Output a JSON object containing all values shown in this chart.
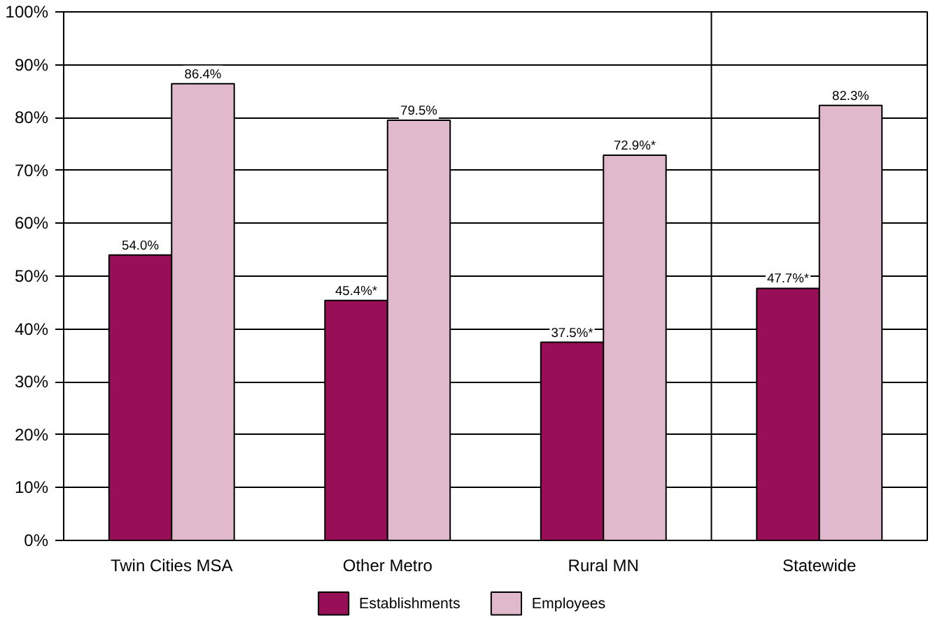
{
  "chart_data": {
    "type": "bar",
    "categories": [
      "Twin Cities MSA",
      "Other Metro",
      "Rural MN",
      "Statewide"
    ],
    "series": [
      {
        "name": "Establishments",
        "color": "#990f57",
        "values": [
          54.0,
          45.4,
          37.5,
          47.7
        ],
        "value_labels": [
          "54.0%",
          "45.4%*",
          "37.5%*",
          "47.7%*"
        ]
      },
      {
        "name": "Employees",
        "color": "#e0b9cd",
        "values": [
          86.4,
          79.5,
          72.9,
          82.3
        ],
        "value_labels": [
          "86.4%",
          "79.5%",
          "72.9%*",
          "82.3%"
        ]
      }
    ],
    "ylim": [
      0,
      100
    ],
    "yticks": [
      {
        "value": 0,
        "label": "0%"
      },
      {
        "value": 10,
        "label": "10%"
      },
      {
        "value": 20,
        "label": "20%"
      },
      {
        "value": 30,
        "label": "30%"
      },
      {
        "value": 40,
        "label": "40%"
      },
      {
        "value": 50,
        "label": "50%"
      },
      {
        "value": 60,
        "label": "60%"
      },
      {
        "value": 70,
        "label": "70%"
      },
      {
        "value": 80,
        "label": "80%"
      },
      {
        "value": 90,
        "label": "90%"
      },
      {
        "value": 100,
        "label": "100%"
      }
    ],
    "grid": "y",
    "legend": "bottom"
  }
}
